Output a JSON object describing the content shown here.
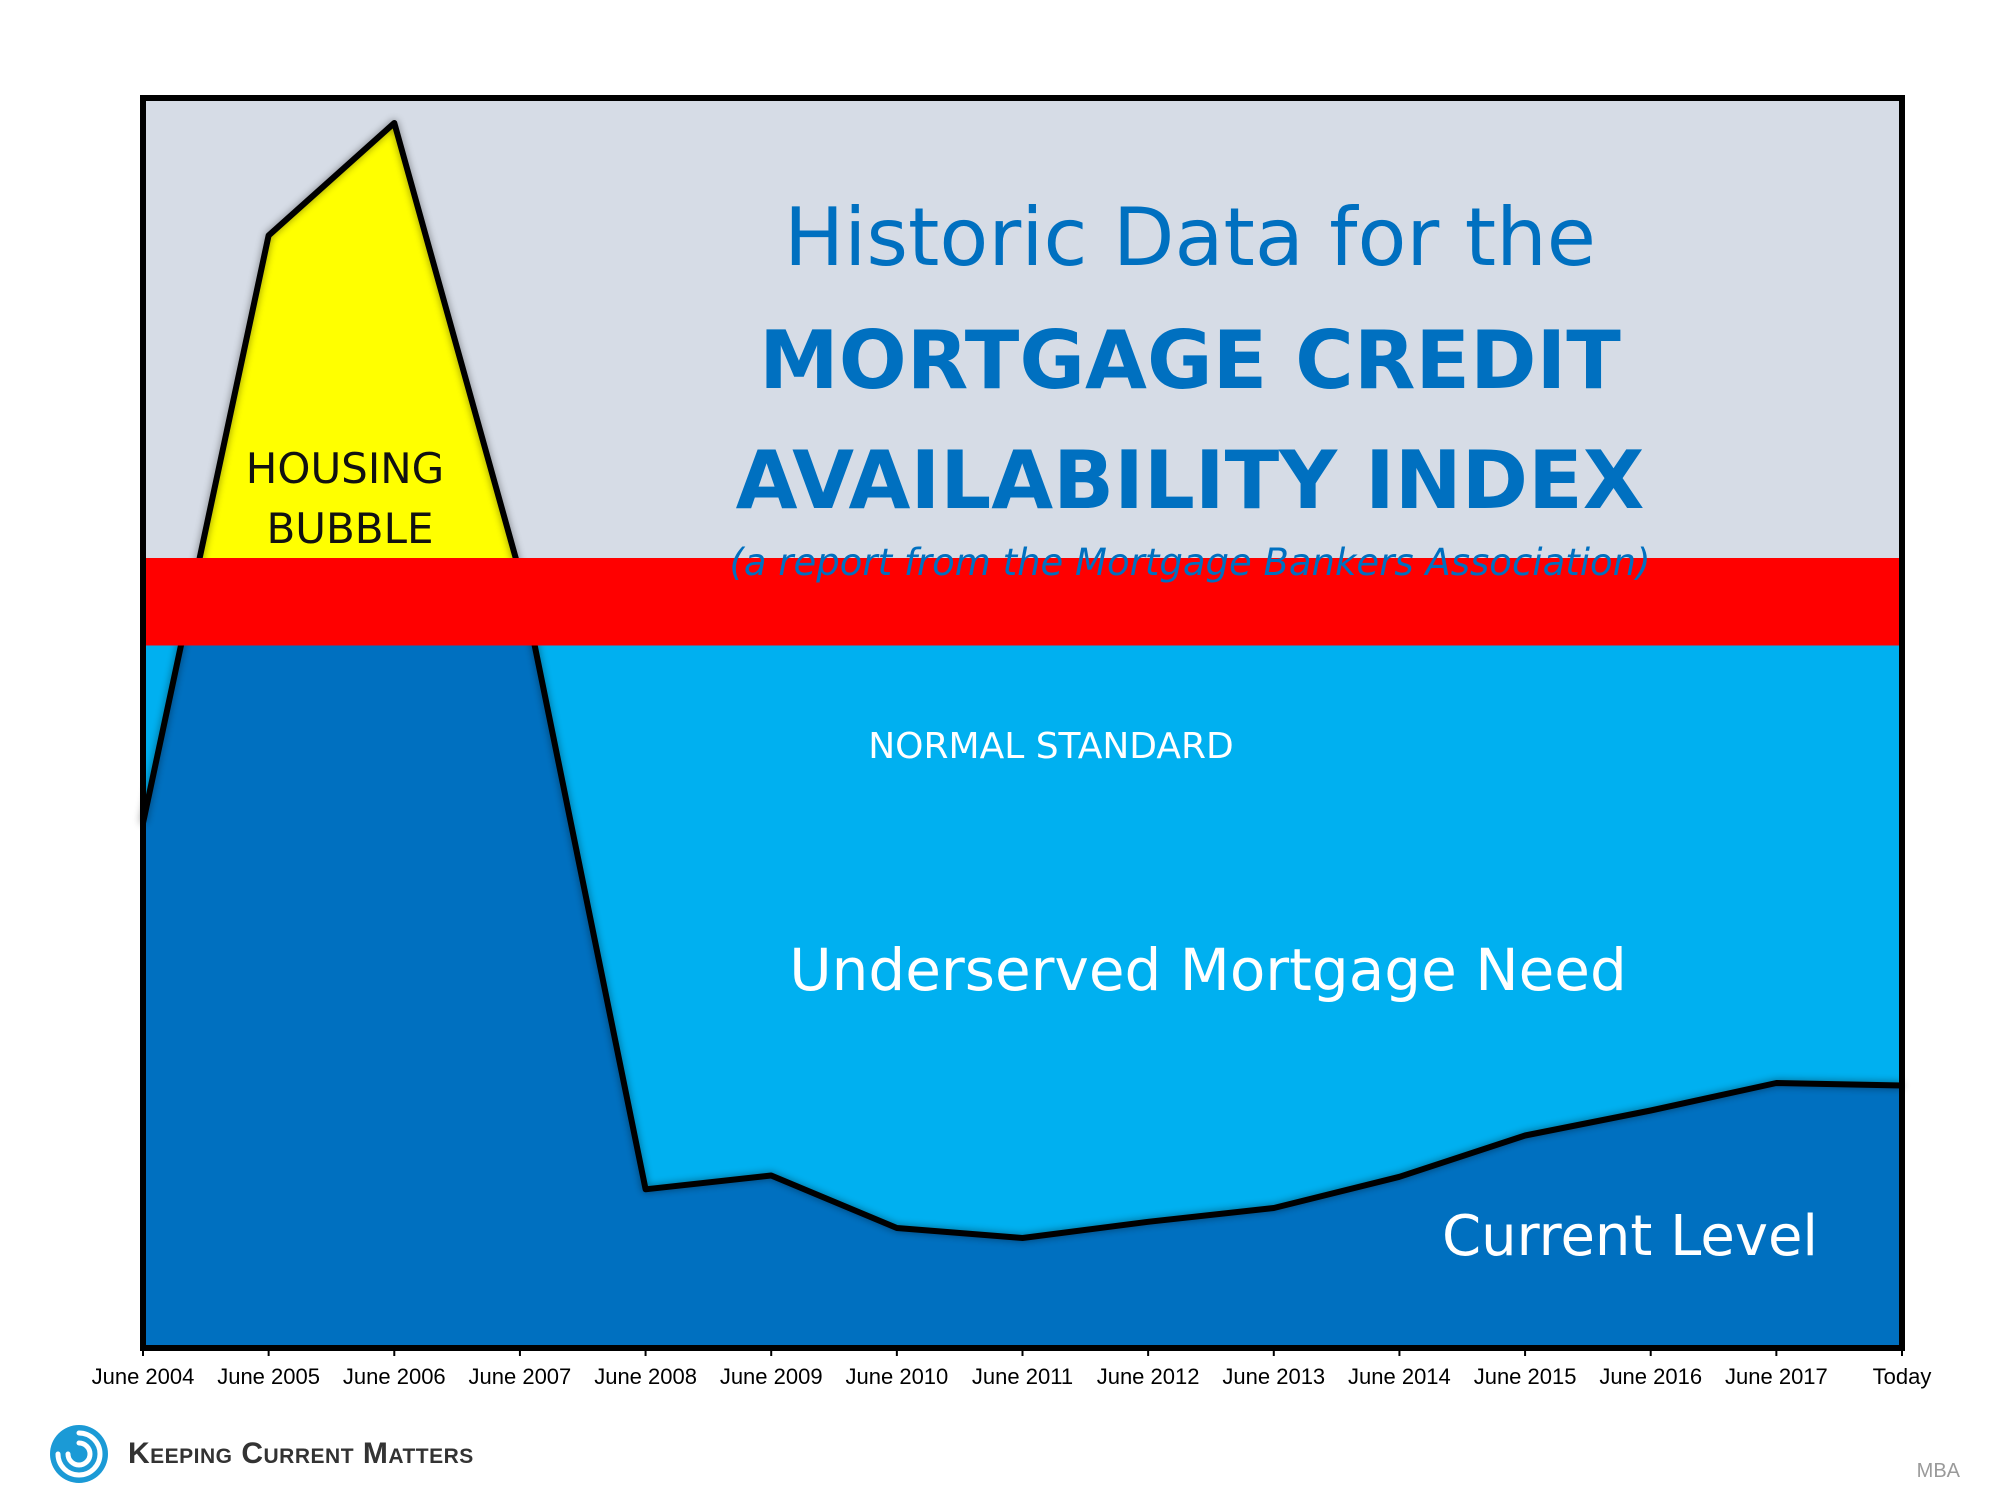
{
  "chart_data": {
    "type": "area",
    "title_line1": "Historic Data for the",
    "title_line2": "MORTGAGE CREDIT",
    "title_line3": "AVAILABILITY INDEX",
    "subtitle": "(a report from the Mortgage Bankers Association)",
    "categories": [
      "June 2004",
      "June 2005",
      "June 2006",
      "June 2007",
      "June 2008",
      "June 2009",
      "June 2010",
      "June 2011",
      "June 2012",
      "June 2013",
      "June 2014",
      "June 2015",
      "June 2016",
      "June 2017",
      "Today"
    ],
    "x": [
      0,
      1,
      2,
      3,
      4,
      5,
      6,
      7,
      8,
      9,
      10,
      11,
      12,
      13,
      14
    ],
    "values": [
      420,
      890,
      980,
      620,
      127,
      138,
      96,
      88,
      101,
      112,
      137,
      170,
      190,
      212,
      210
    ],
    "normal_standard": {
      "label": "NORMAL STANDARD",
      "min": 562,
      "max": 632
    },
    "ylim": [
      0,
      1000
    ],
    "annotations": {
      "bubble": [
        "HOUSING",
        "BUBBLE"
      ],
      "gap": "Underserved Mortgage Need",
      "current": "Current Level"
    },
    "grid": false,
    "colors": {
      "plot_background": "#d6dce6",
      "bubble_fill": "#ffff00",
      "band": "#ff0000",
      "gap_fill": "#00b0f0",
      "current_fill": "#0070c0",
      "title": "#0070c0",
      "line": "#000000"
    }
  },
  "footer": {
    "logo_text": "Keeping Current Matters",
    "logo_icon": "swirl-icon",
    "source": "MBA"
  }
}
